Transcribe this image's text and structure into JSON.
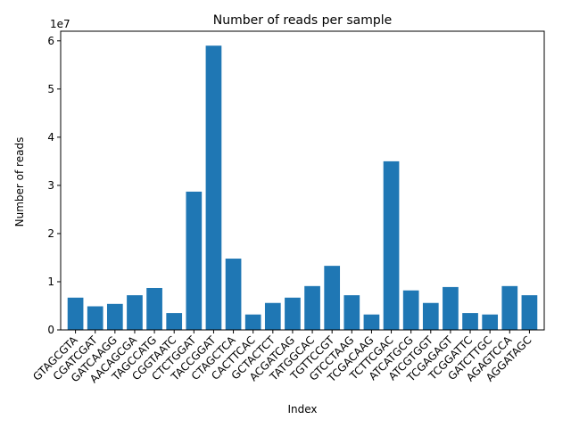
{
  "chart_data": {
    "type": "bar",
    "title": "Number of reads per sample",
    "xlabel": "Index",
    "ylabel": "Number of reads",
    "y_offset_text": "1e7",
    "ylim": [
      0,
      62000000
    ],
    "yticks": [
      0,
      10000000,
      20000000,
      30000000,
      40000000,
      50000000,
      60000000
    ],
    "ytick_labels": [
      "0",
      "1",
      "2",
      "3",
      "4",
      "5",
      "6"
    ],
    "grid": false,
    "bar_color": "#1f77b4",
    "categories": [
      "GTAGCGTA",
      "CGATCGAT",
      "GATCAAGG",
      "AACAGCGA",
      "TAGCCATG",
      "CGGTAATC",
      "CTCTGGAT",
      "TACCGGAT",
      "CTAGCTCA",
      "CACTTCAC",
      "GCTACTCT",
      "ACGATCAG",
      "TATGGCAC",
      "TGTTCCGT",
      "GTCCTAAG",
      "TCGACAAG",
      "TCTTCGAC",
      "ATCATGCG",
      "ATCGTGGT",
      "TCGAGAGT",
      "TCGGATTC",
      "GATCTTGC",
      "AGAGTCCA",
      "AGGATAGC"
    ],
    "values": [
      6700000,
      4900000,
      5400000,
      7200000,
      8700000,
      3500000,
      28700000,
      59000000,
      14800000,
      3200000,
      5600000,
      6700000,
      9100000,
      13300000,
      7200000,
      3200000,
      35000000,
      8200000,
      5600000,
      8900000,
      3500000,
      3200000,
      9100000,
      7200000
    ]
  }
}
